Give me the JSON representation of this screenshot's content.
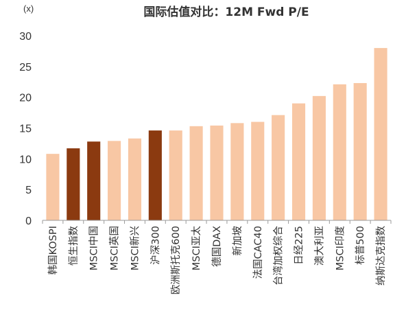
{
  "chart_data": {
    "type": "bar",
    "title": "国际估值对比：12M Fwd P/E",
    "unit_label": "(x)",
    "ylim": [
      0,
      30
    ],
    "yticks": [
      0,
      5,
      10,
      15,
      20,
      25,
      30
    ],
    "grid": false,
    "legend": "none",
    "categories": [
      "韩国KOSPI",
      "恒生指数",
      "MSCI中国",
      "MSCI英国",
      "MSCI新兴",
      "沪深300",
      "欧洲斯托克600",
      "MSCI亚太",
      "德国DAX",
      "新加坡",
      "法国CAC40",
      "台湾加权综合",
      "日经225",
      "澳大利亚",
      "MSCI印度",
      "标普500",
      "纳斯达克指数"
    ],
    "values": [
      10.8,
      11.7,
      12.8,
      12.9,
      13.3,
      14.6,
      14.6,
      15.3,
      15.4,
      15.8,
      16.0,
      17.1,
      19.0,
      20.2,
      22.1,
      22.3,
      28.0
    ],
    "highlight": [
      false,
      true,
      true,
      false,
      false,
      true,
      false,
      false,
      false,
      false,
      false,
      false,
      false,
      false,
      false,
      false,
      false
    ],
    "colors": {
      "normal": "#f8c7a4",
      "highlight": "#8b3a10",
      "axis": "#9a9a9a",
      "text": "#333333"
    }
  }
}
